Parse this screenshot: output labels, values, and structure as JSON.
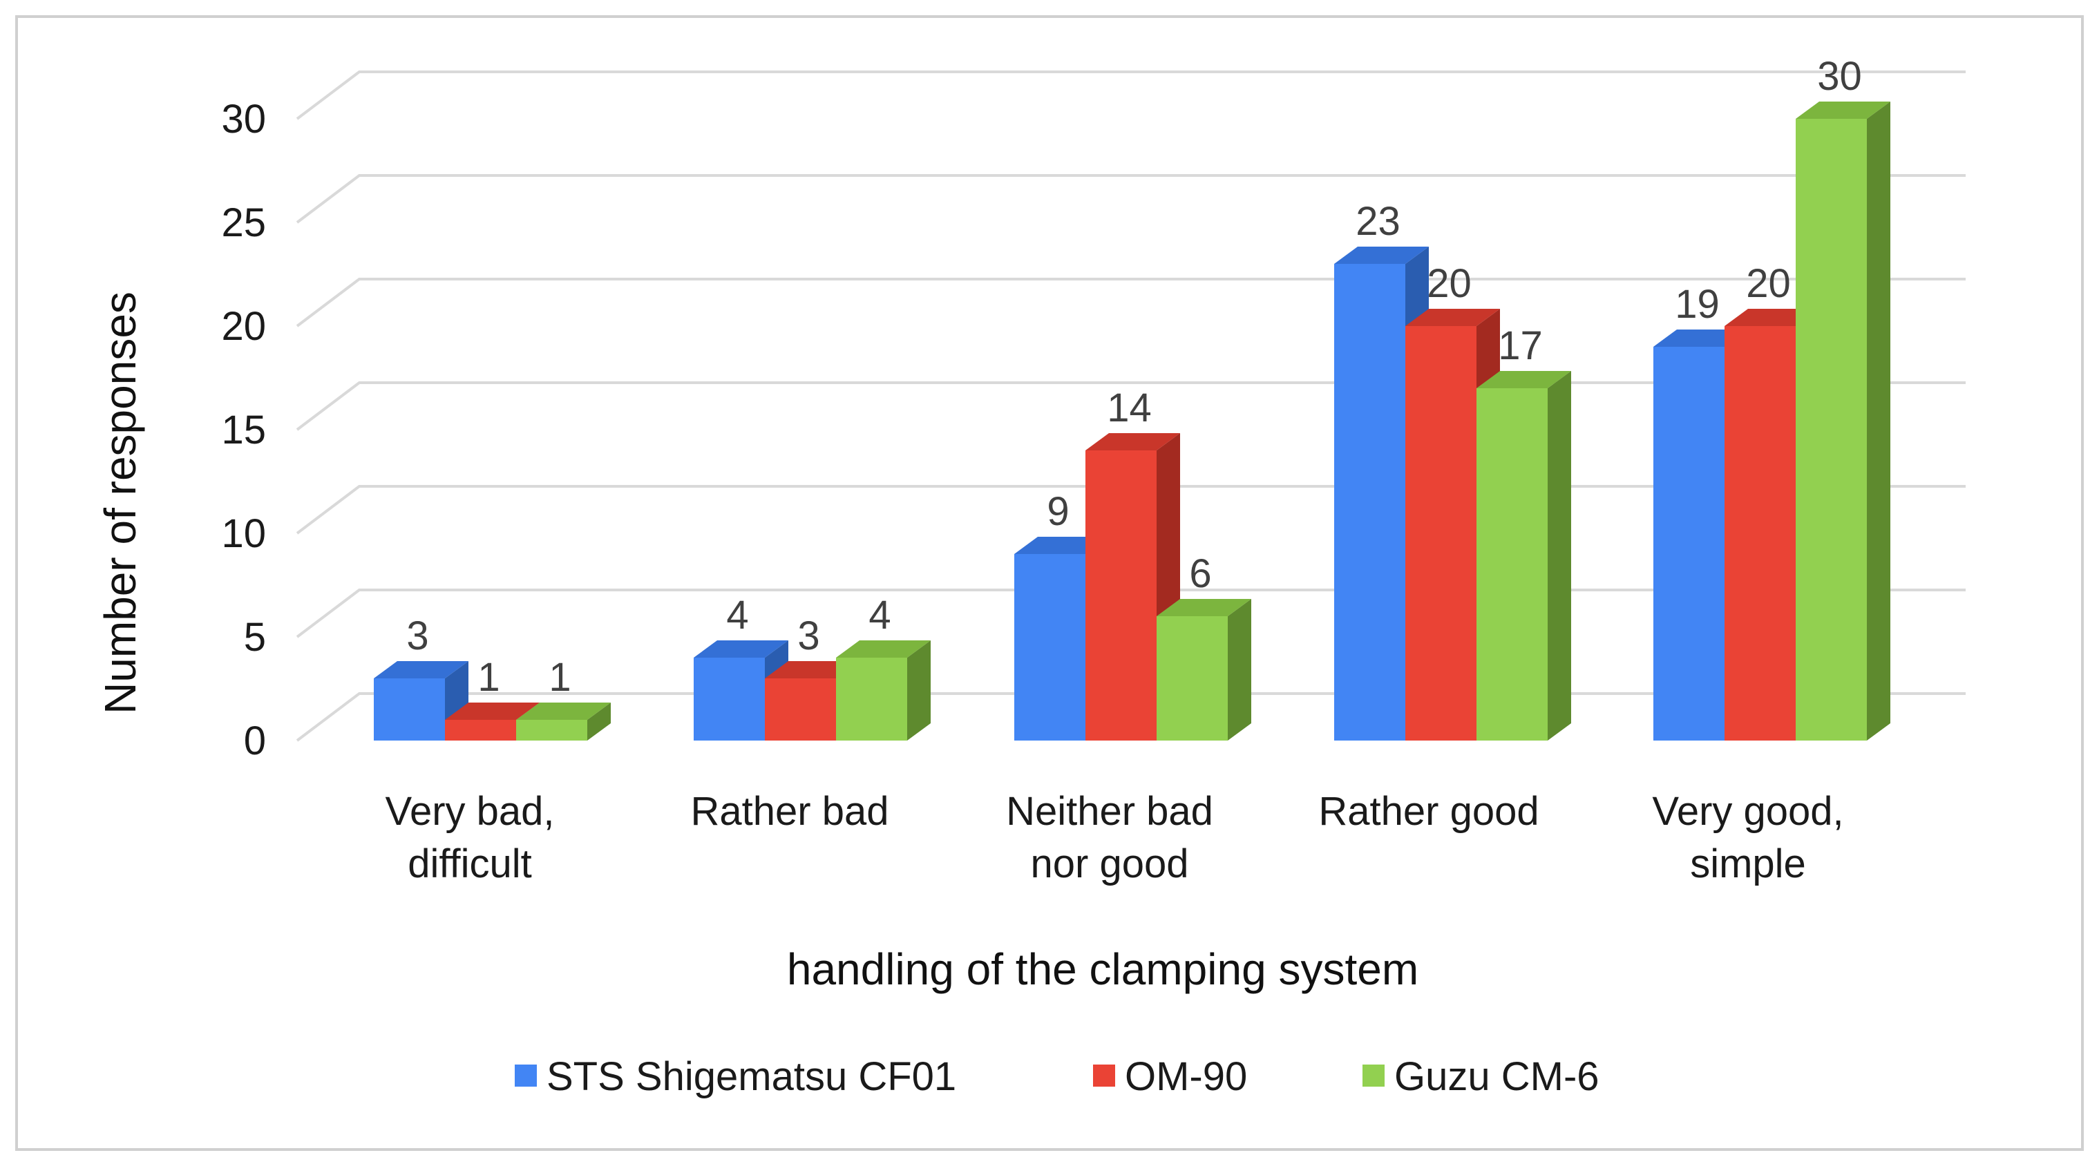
{
  "chart_data": {
    "type": "bar",
    "style": "3d-clustered-column",
    "title": "",
    "xlabel": "handling of the clamping system",
    "ylabel": "Number of responses",
    "ylim": [
      0,
      30
    ],
    "yticks": [
      0,
      5,
      10,
      15,
      20,
      25,
      30
    ],
    "grid": true,
    "legend_position": "bottom",
    "categories": [
      [
        "Very bad,",
        "difficult"
      ],
      [
        "Rather bad"
      ],
      [
        "Neither bad",
        "nor good"
      ],
      [
        "Rather good"
      ],
      [
        "Very good,",
        "simple"
      ]
    ],
    "series": [
      {
        "name": "STS Shigematsu CF01",
        "color": "#4285F4",
        "side_color": "#2A5DB0",
        "top_color": "#3470D6",
        "values": [
          3,
          4,
          9,
          23,
          19
        ]
      },
      {
        "name": "OM-90",
        "color": "#EA4335",
        "side_color": "#A32A20",
        "top_color": "#C9362A",
        "values": [
          1,
          3,
          14,
          20,
          20
        ]
      },
      {
        "name": "Guzu CM-6",
        "color": "#92D050",
        "side_color": "#5E8A2E",
        "top_color": "#7CB53E",
        "values": [
          1,
          4,
          6,
          17,
          30
        ]
      }
    ],
    "colors": {
      "gridline": "#D9D9D9",
      "border": "#D0D0D0"
    }
  }
}
